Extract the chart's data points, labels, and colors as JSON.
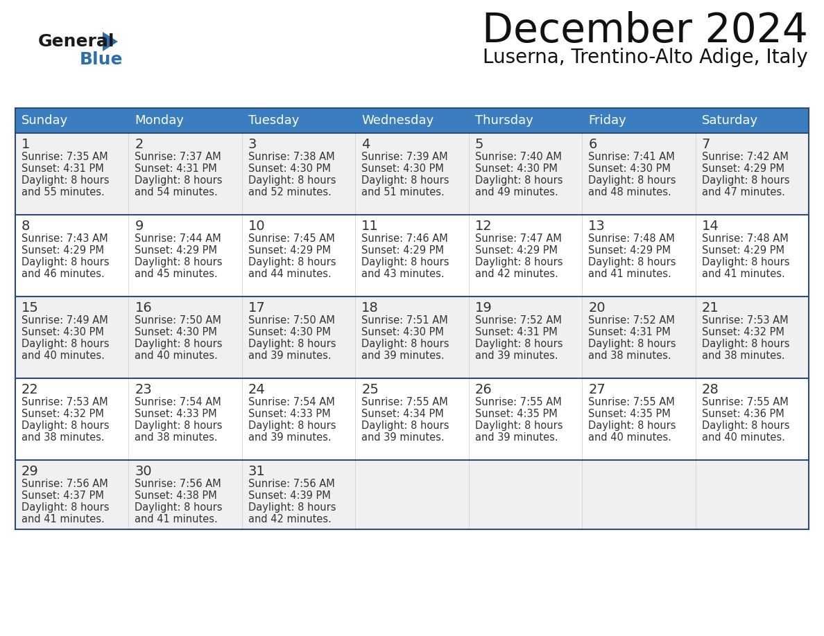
{
  "title": "December 2024",
  "subtitle": "Luserna, Trentino-Alto Adige, Italy",
  "days_of_week": [
    "Sunday",
    "Monday",
    "Tuesday",
    "Wednesday",
    "Thursday",
    "Friday",
    "Saturday"
  ],
  "header_bg": "#3a7ebf",
  "header_text": "#ffffff",
  "row_bg_odd": "#f0f0f0",
  "row_bg_even": "#ffffff",
  "cell_border_color": "#ffffff",
  "row_separator_color": "#2e4b7a",
  "outer_border_color": "#3a7ebf",
  "day_text_color": "#333333",
  "info_text_color": "#333333",
  "calendar_data": [
    [
      {
        "day": 1,
        "sunrise": "7:35 AM",
        "sunset": "4:31 PM",
        "daylight_suffix": "55 minutes."
      },
      {
        "day": 2,
        "sunrise": "7:37 AM",
        "sunset": "4:31 PM",
        "daylight_suffix": "54 minutes."
      },
      {
        "day": 3,
        "sunrise": "7:38 AM",
        "sunset": "4:30 PM",
        "daylight_suffix": "52 minutes."
      },
      {
        "day": 4,
        "sunrise": "7:39 AM",
        "sunset": "4:30 PM",
        "daylight_suffix": "51 minutes."
      },
      {
        "day": 5,
        "sunrise": "7:40 AM",
        "sunset": "4:30 PM",
        "daylight_suffix": "49 minutes."
      },
      {
        "day": 6,
        "sunrise": "7:41 AM",
        "sunset": "4:30 PM",
        "daylight_suffix": "48 minutes."
      },
      {
        "day": 7,
        "sunrise": "7:42 AM",
        "sunset": "4:29 PM",
        "daylight_suffix": "47 minutes."
      }
    ],
    [
      {
        "day": 8,
        "sunrise": "7:43 AM",
        "sunset": "4:29 PM",
        "daylight_suffix": "46 minutes."
      },
      {
        "day": 9,
        "sunrise": "7:44 AM",
        "sunset": "4:29 PM",
        "daylight_suffix": "45 minutes."
      },
      {
        "day": 10,
        "sunrise": "7:45 AM",
        "sunset": "4:29 PM",
        "daylight_suffix": "44 minutes."
      },
      {
        "day": 11,
        "sunrise": "7:46 AM",
        "sunset": "4:29 PM",
        "daylight_suffix": "43 minutes."
      },
      {
        "day": 12,
        "sunrise": "7:47 AM",
        "sunset": "4:29 PM",
        "daylight_suffix": "42 minutes."
      },
      {
        "day": 13,
        "sunrise": "7:48 AM",
        "sunset": "4:29 PM",
        "daylight_suffix": "41 minutes."
      },
      {
        "day": 14,
        "sunrise": "7:48 AM",
        "sunset": "4:29 PM",
        "daylight_suffix": "41 minutes."
      }
    ],
    [
      {
        "day": 15,
        "sunrise": "7:49 AM",
        "sunset": "4:30 PM",
        "daylight_suffix": "40 minutes."
      },
      {
        "day": 16,
        "sunrise": "7:50 AM",
        "sunset": "4:30 PM",
        "daylight_suffix": "40 minutes."
      },
      {
        "day": 17,
        "sunrise": "7:50 AM",
        "sunset": "4:30 PM",
        "daylight_suffix": "39 minutes."
      },
      {
        "day": 18,
        "sunrise": "7:51 AM",
        "sunset": "4:30 PM",
        "daylight_suffix": "39 minutes."
      },
      {
        "day": 19,
        "sunrise": "7:52 AM",
        "sunset": "4:31 PM",
        "daylight_suffix": "39 minutes."
      },
      {
        "day": 20,
        "sunrise": "7:52 AM",
        "sunset": "4:31 PM",
        "daylight_suffix": "38 minutes."
      },
      {
        "day": 21,
        "sunrise": "7:53 AM",
        "sunset": "4:32 PM",
        "daylight_suffix": "38 minutes."
      }
    ],
    [
      {
        "day": 22,
        "sunrise": "7:53 AM",
        "sunset": "4:32 PM",
        "daylight_suffix": "38 minutes."
      },
      {
        "day": 23,
        "sunrise": "7:54 AM",
        "sunset": "4:33 PM",
        "daylight_suffix": "38 minutes."
      },
      {
        "day": 24,
        "sunrise": "7:54 AM",
        "sunset": "4:33 PM",
        "daylight_suffix": "39 minutes."
      },
      {
        "day": 25,
        "sunrise": "7:55 AM",
        "sunset": "4:34 PM",
        "daylight_suffix": "39 minutes."
      },
      {
        "day": 26,
        "sunrise": "7:55 AM",
        "sunset": "4:35 PM",
        "daylight_suffix": "39 minutes."
      },
      {
        "day": 27,
        "sunrise": "7:55 AM",
        "sunset": "4:35 PM",
        "daylight_suffix": "40 minutes."
      },
      {
        "day": 28,
        "sunrise": "7:55 AM",
        "sunset": "4:36 PM",
        "daylight_suffix": "40 minutes."
      }
    ],
    [
      {
        "day": 29,
        "sunrise": "7:56 AM",
        "sunset": "4:37 PM",
        "daylight_suffix": "41 minutes."
      },
      {
        "day": 30,
        "sunrise": "7:56 AM",
        "sunset": "4:38 PM",
        "daylight_suffix": "41 minutes."
      },
      {
        "day": 31,
        "sunrise": "7:56 AM",
        "sunset": "4:39 PM",
        "daylight_suffix": "42 minutes."
      },
      null,
      null,
      null,
      null
    ]
  ],
  "logo_text_general": "General",
  "logo_text_blue": "Blue",
  "logo_color_general": "#1a1a1a",
  "logo_color_blue": "#2e6eb0",
  "logo_triangle_color": "#2e6eb0",
  "title_fontsize": 42,
  "subtitle_fontsize": 20,
  "header_fontsize": 13,
  "day_num_fontsize": 14,
  "info_fontsize": 10.5
}
